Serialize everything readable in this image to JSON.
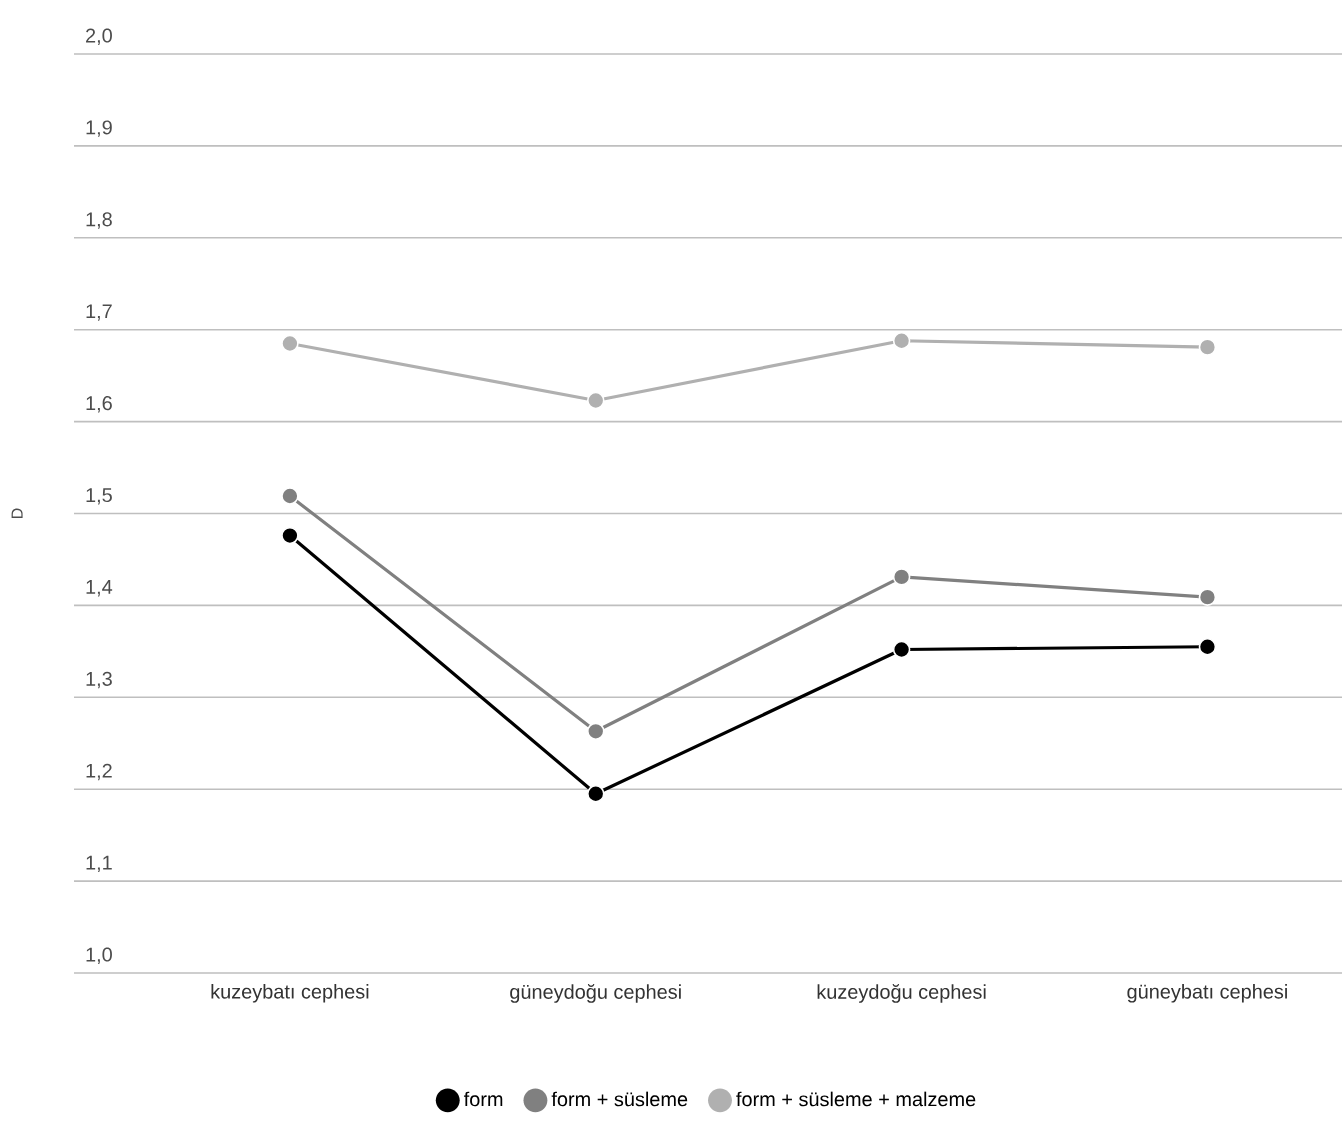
{
  "chart_data": {
    "type": "line",
    "ylabel": "D",
    "categories": [
      "kuzeybatı cephesi",
      "güneydoğu cephesi",
      "kuzeydoğu cephesi",
      "güneybatı cephesi"
    ],
    "series": [
      {
        "name": "form",
        "color": "#000000",
        "values": [
          1.476,
          1.195,
          1.352,
          1.355
        ]
      },
      {
        "name": "form + süsleme",
        "color": "#808080",
        "values": [
          1.519,
          1.263,
          1.431,
          1.409
        ]
      },
      {
        "name": "form + süsleme + malzeme",
        "color": "#b0b0b0",
        "values": [
          1.685,
          1.623,
          1.688,
          1.681
        ]
      }
    ],
    "ylim": [
      1.0,
      2.0
    ],
    "yticks": [
      {
        "value": 1.0,
        "label": "1,0"
      },
      {
        "value": 1.1,
        "label": "1,1"
      },
      {
        "value": 1.2,
        "label": "1,2"
      },
      {
        "value": 1.3,
        "label": "1,3"
      },
      {
        "value": 1.4,
        "label": "1,4"
      },
      {
        "value": 1.5,
        "label": "1,5"
      },
      {
        "value": 1.6,
        "label": "1,6"
      },
      {
        "value": 1.7,
        "label": "1,7"
      },
      {
        "value": 1.8,
        "label": "1,8"
      },
      {
        "value": 1.9,
        "label": "1,9"
      },
      {
        "value": 2.0,
        "label": "2,0"
      }
    ],
    "grid": "y",
    "legend": "bottom",
    "marker": "circle",
    "line_style": "solid"
  }
}
